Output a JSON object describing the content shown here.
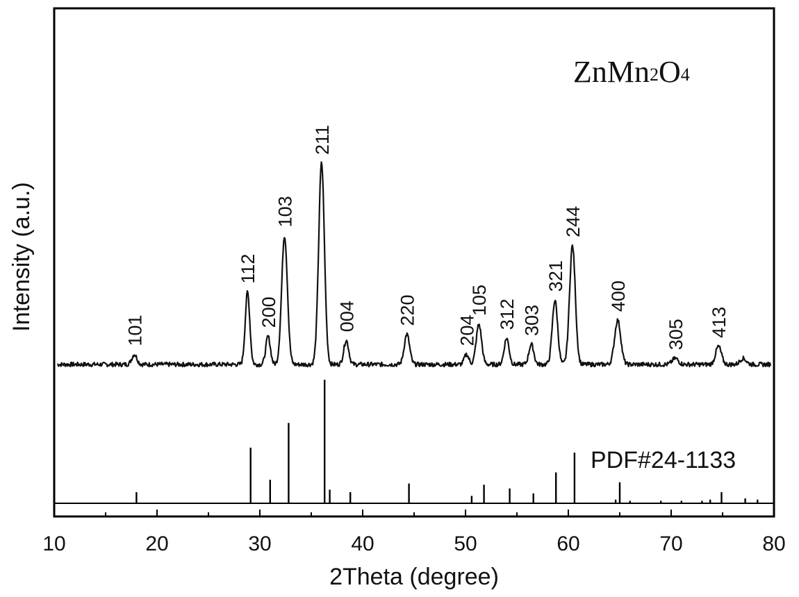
{
  "chart_data": {
    "type": "line",
    "xlabel": "2Theta (degree)",
    "ylabel": "Intensity (a.u.)",
    "xlim": [
      10,
      80
    ],
    "x_ticks": [
      "10",
      "20",
      "30",
      "40",
      "50",
      "60",
      "70",
      "80"
    ],
    "grid": false,
    "formula": {
      "main1": "ZnMn",
      "sub1": "2",
      "main2": "O",
      "sub2": "4"
    },
    "reference_label": "PDF#24-1133",
    "peaks": [
      {
        "x": 17.8,
        "height": 0.05,
        "width": 0.25,
        "label": "101"
      },
      {
        "x": 28.8,
        "height": 0.36,
        "width": 0.22,
        "label": "112"
      },
      {
        "x": 30.8,
        "height": 0.14,
        "width": 0.22,
        "label": "200"
      },
      {
        "x": 32.4,
        "height": 0.64,
        "width": 0.28,
        "label": "103"
      },
      {
        "x": 36.0,
        "height": 1.0,
        "width": 0.28,
        "label": "211"
      },
      {
        "x": 38.4,
        "height": 0.12,
        "width": 0.24,
        "label": "004"
      },
      {
        "x": 44.3,
        "height": 0.15,
        "width": 0.26,
        "label": "220"
      },
      {
        "x": 50.1,
        "height": 0.05,
        "width": 0.22,
        "label": "204"
      },
      {
        "x": 51.3,
        "height": 0.2,
        "width": 0.26,
        "label": "105"
      },
      {
        "x": 54.0,
        "height": 0.13,
        "width": 0.24,
        "label": "312"
      },
      {
        "x": 56.4,
        "height": 0.1,
        "width": 0.24,
        "label": "303"
      },
      {
        "x": 58.7,
        "height": 0.32,
        "width": 0.26,
        "label": "321"
      },
      {
        "x": 60.4,
        "height": 0.59,
        "width": 0.28,
        "label": "244"
      },
      {
        "x": 64.8,
        "height": 0.22,
        "width": 0.3,
        "label": "400"
      },
      {
        "x": 70.4,
        "height": 0.03,
        "width": 0.3,
        "label": "305"
      },
      {
        "x": 74.6,
        "height": 0.09,
        "width": 0.28,
        "label": "413"
      },
      {
        "x": 77.0,
        "height": 0.03,
        "width": 0.3,
        "label": ""
      }
    ],
    "reference_lines": [
      {
        "x": 18.0,
        "intensity": 0.09
      },
      {
        "x": 29.1,
        "intensity": 0.45
      },
      {
        "x": 31.0,
        "intensity": 0.19
      },
      {
        "x": 32.8,
        "intensity": 0.65
      },
      {
        "x": 36.3,
        "intensity": 1.0
      },
      {
        "x": 36.8,
        "intensity": 0.11
      },
      {
        "x": 38.8,
        "intensity": 0.09
      },
      {
        "x": 44.5,
        "intensity": 0.16
      },
      {
        "x": 50.6,
        "intensity": 0.06
      },
      {
        "x": 51.8,
        "intensity": 0.15
      },
      {
        "x": 54.3,
        "intensity": 0.12
      },
      {
        "x": 56.6,
        "intensity": 0.08
      },
      {
        "x": 58.8,
        "intensity": 0.25
      },
      {
        "x": 60.6,
        "intensity": 0.41
      },
      {
        "x": 64.6,
        "intensity": 0.03
      },
      {
        "x": 65.0,
        "intensity": 0.17
      },
      {
        "x": 66.0,
        "intensity": 0.02
      },
      {
        "x": 69.0,
        "intensity": 0.02
      },
      {
        "x": 71.0,
        "intensity": 0.02
      },
      {
        "x": 73.0,
        "intensity": 0.02
      },
      {
        "x": 73.8,
        "intensity": 0.03
      },
      {
        "x": 74.9,
        "intensity": 0.09
      },
      {
        "x": 77.2,
        "intensity": 0.04
      },
      {
        "x": 78.4,
        "intensity": 0.03
      }
    ]
  }
}
